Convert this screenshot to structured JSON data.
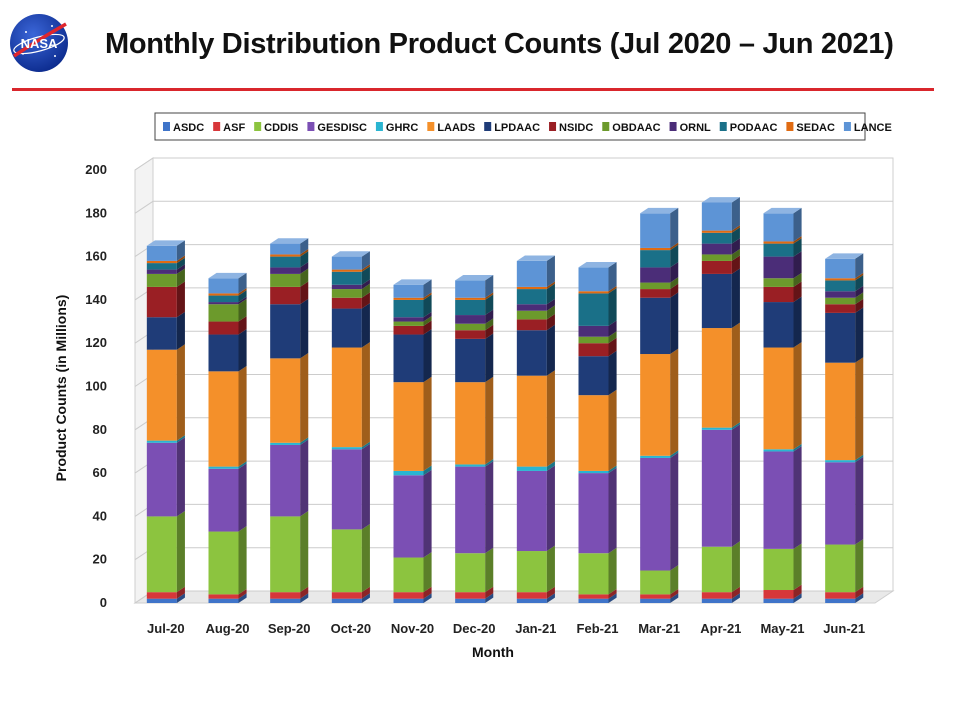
{
  "header": {
    "title": "Monthly Distribution Product Counts (Jul 2020 – Jun 2021)",
    "logo_text": "NASA"
  },
  "colors": {
    "rule": "#d9262c",
    "series": {
      "ASDC": "#3f74c9",
      "ASF": "#d7373a",
      "CDDIS": "#8cc43f",
      "GESDISC": "#7b4fb4",
      "GHRC": "#2ab5d1",
      "LAADS": "#f4902a",
      "LPDAAC": "#1f3c78",
      "NSIDC": "#9a1f24",
      "OBDAAC": "#6c9a2c",
      "ORNL": "#4b2d78",
      "PODAAC": "#1a7088",
      "SEDAC": "#e06b12",
      "LANCE": "#5d94d6"
    }
  },
  "chart_data": {
    "type": "bar",
    "stacked": true,
    "title": "Monthly Distribution Product Counts (Jul 2020 – Jun 2021)",
    "xlabel": "Month",
    "ylabel": "Product Counts (in Millions)",
    "ylim": [
      0,
      200
    ],
    "yticks": [
      0,
      20,
      40,
      60,
      80,
      100,
      120,
      140,
      160,
      180,
      200
    ],
    "grid": true,
    "legend_position": "top",
    "categories": [
      "Jul-20",
      "Aug-20",
      "Sep-20",
      "Oct-20",
      "Nov-20",
      "Dec-20",
      "Jan-21",
      "Feb-21",
      "Mar-21",
      "Apr-21",
      "May-21",
      "Jun-21"
    ],
    "series": [
      {
        "name": "ASDC",
        "values": [
          2,
          2,
          2,
          2,
          2,
          2,
          2,
          2,
          2,
          2,
          2,
          2
        ]
      },
      {
        "name": "ASF",
        "values": [
          3,
          2,
          3,
          3,
          3,
          3,
          3,
          2,
          2,
          3,
          4,
          3
        ]
      },
      {
        "name": "CDDIS",
        "values": [
          35,
          29,
          35,
          29,
          16,
          18,
          19,
          19,
          11,
          21,
          19,
          22
        ]
      },
      {
        "name": "GESDISC",
        "values": [
          34,
          29,
          33,
          37,
          38,
          40,
          37,
          37,
          52,
          54,
          45,
          38
        ]
      },
      {
        "name": "GHRC",
        "values": [
          1,
          1,
          1,
          1,
          2,
          1,
          2,
          1,
          1,
          1,
          1,
          1
        ]
      },
      {
        "name": "LAADS",
        "values": [
          42,
          44,
          39,
          46,
          41,
          38,
          42,
          35,
          47,
          46,
          47,
          45
        ]
      },
      {
        "name": "LPDAAC",
        "values": [
          15,
          17,
          25,
          18,
          22,
          20,
          21,
          18,
          26,
          25,
          21,
          23
        ]
      },
      {
        "name": "NSIDC",
        "values": [
          14,
          6,
          8,
          5,
          4,
          4,
          5,
          6,
          4,
          6,
          7,
          4
        ]
      },
      {
        "name": "OBDAAC",
        "values": [
          6,
          8,
          6,
          4,
          2,
          3,
          4,
          3,
          3,
          3,
          4,
          3
        ]
      },
      {
        "name": "ORNL",
        "values": [
          2,
          1,
          3,
          2,
          2,
          4,
          3,
          5,
          7,
          5,
          10,
          3
        ]
      },
      {
        "name": "PODAAC",
        "values": [
          3,
          3,
          5,
          6,
          8,
          7,
          7,
          15,
          8,
          5,
          6,
          5
        ]
      },
      {
        "name": "SEDAC",
        "values": [
          1,
          1,
          1,
          1,
          1,
          1,
          1,
          1,
          1,
          1,
          1,
          1
        ]
      },
      {
        "name": "LANCE",
        "values": [
          7,
          7,
          5,
          6,
          6,
          8,
          12,
          11,
          16,
          13,
          13,
          9
        ]
      }
    ]
  }
}
